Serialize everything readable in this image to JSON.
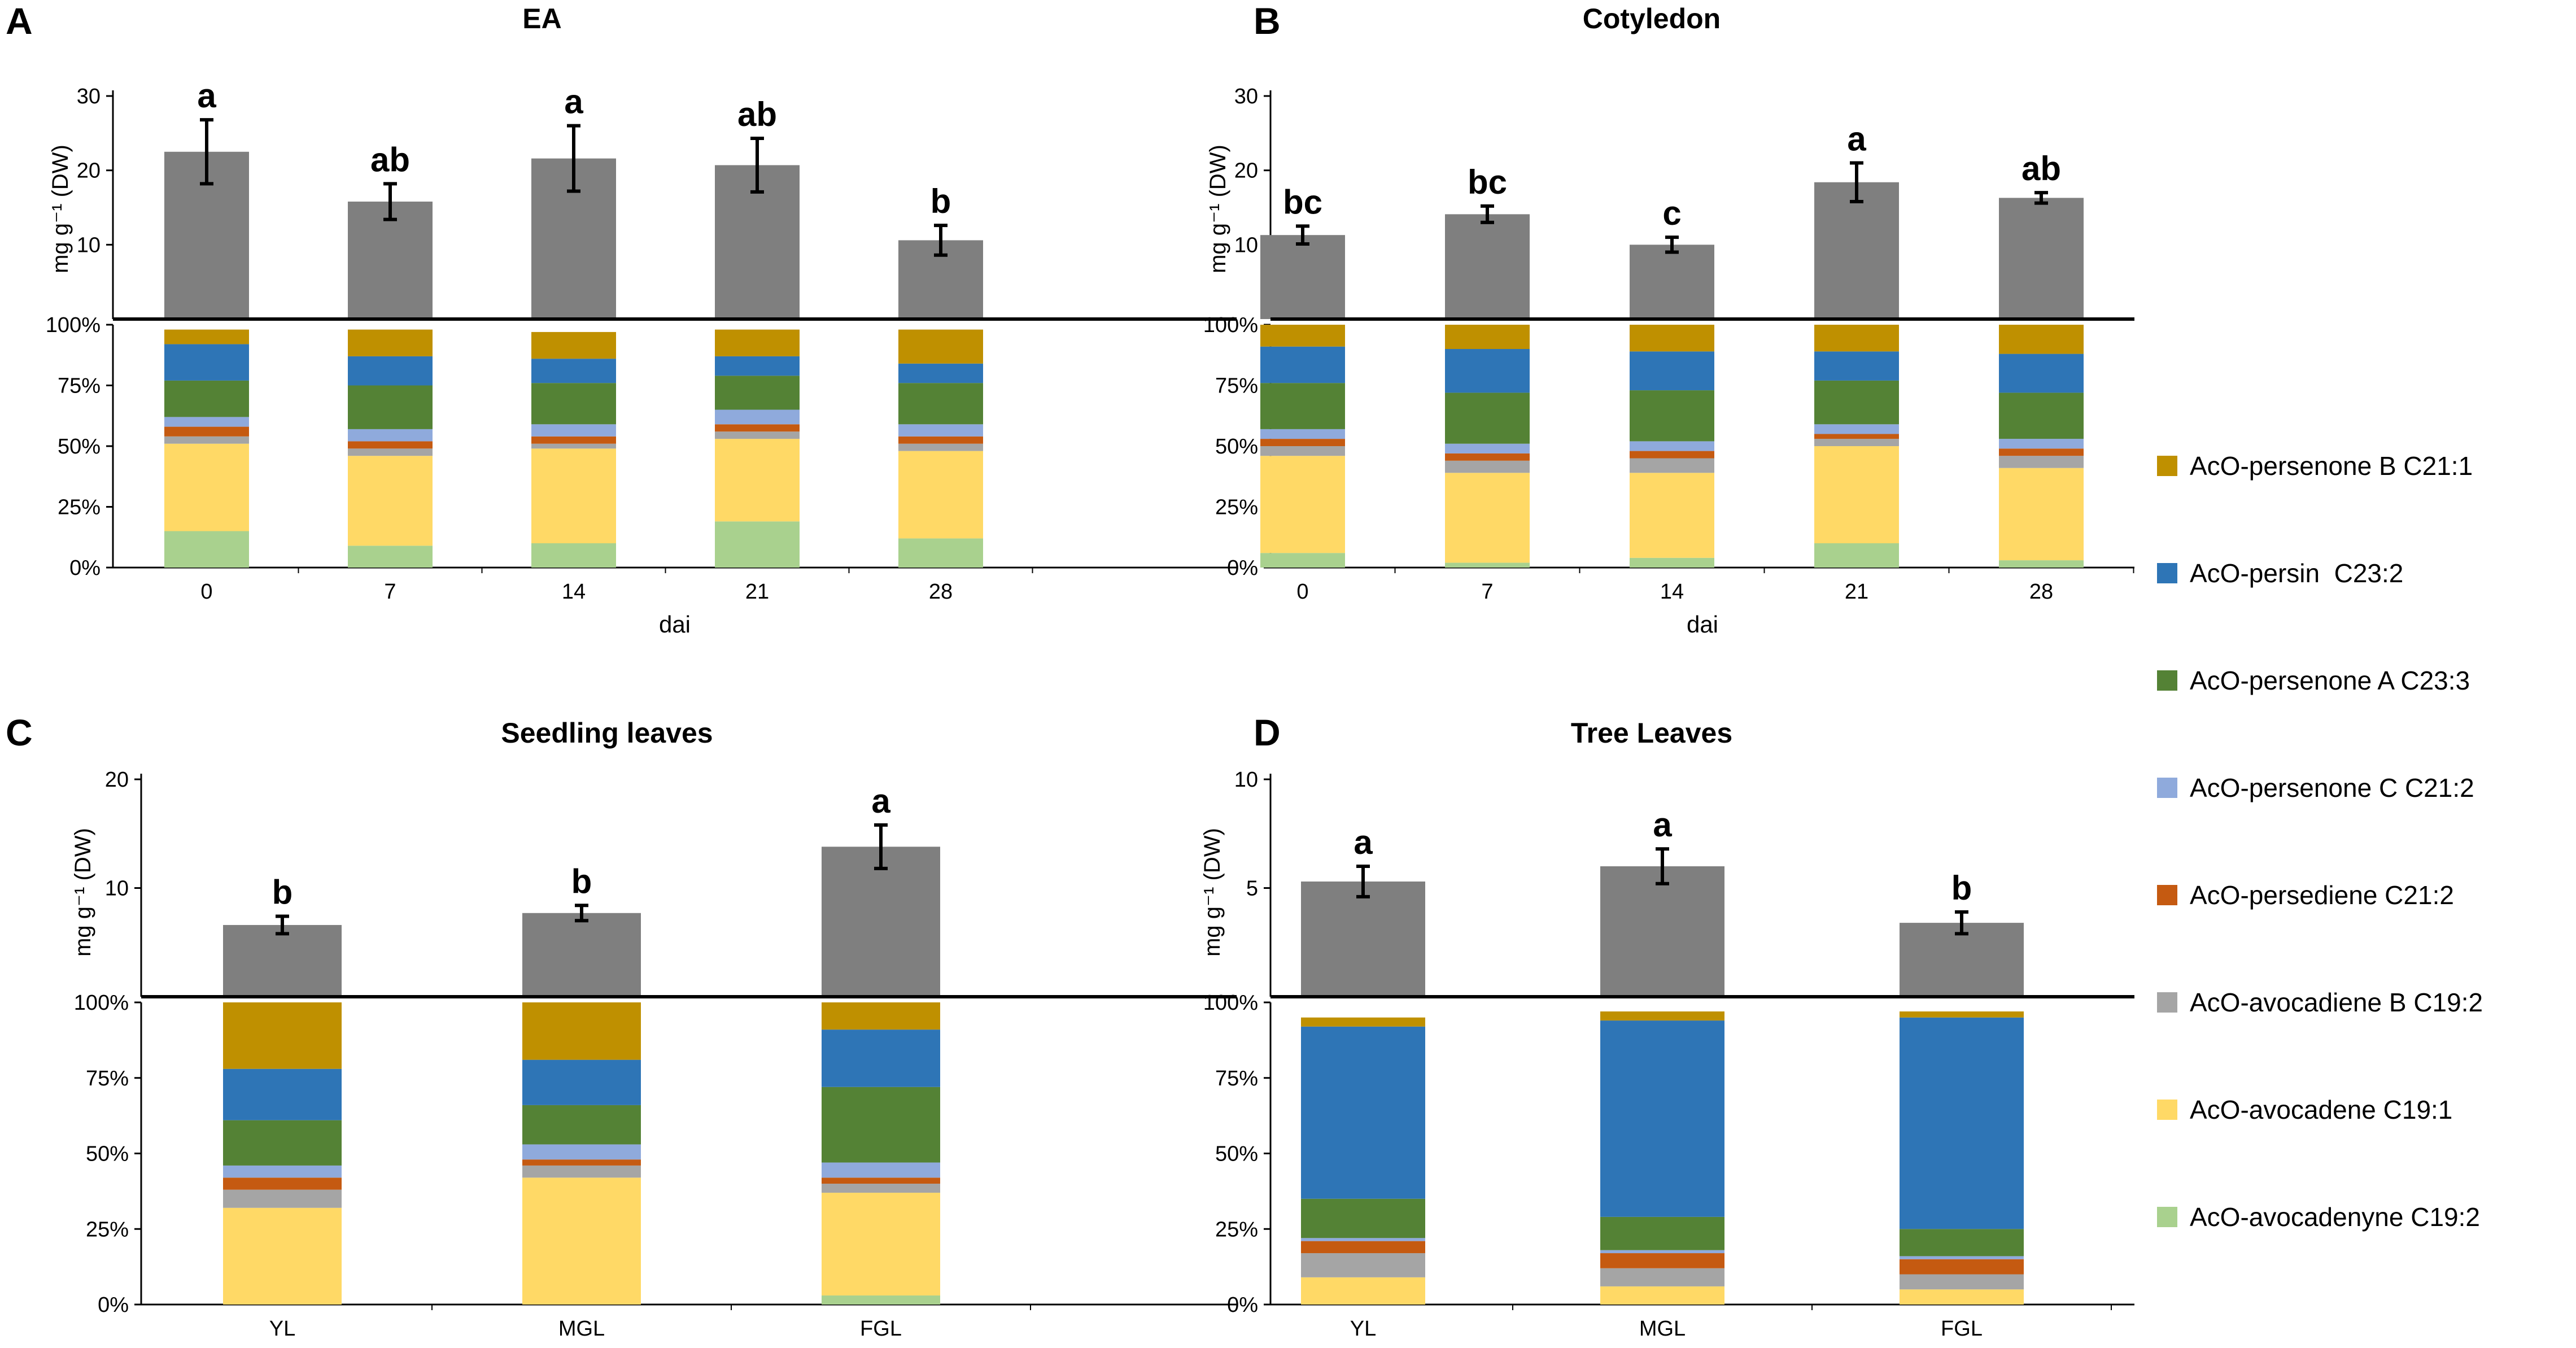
{
  "chart_data": [
    {
      "panel": "A",
      "title": "EA",
      "type": "bar",
      "xlabel": "dai",
      "ylabel": "mg g⁻¹ (DW)",
      "ylim": [
        0,
        30
      ],
      "yticks": [
        "10",
        "20",
        "30"
      ],
      "categories": [
        "0",
        "7",
        "14",
        "21",
        "28"
      ],
      "values": [
        22.5,
        15.8,
        21.6,
        20.7,
        10.6
      ],
      "errors": [
        4.3,
        2.4,
        4.4,
        3.6,
        2.0
      ],
      "significance": [
        "a",
        "ab",
        "a",
        "ab",
        "b"
      ],
      "pct_ticks": [
        "0%",
        "25%",
        "50%",
        "75%",
        "100%"
      ],
      "composition": [
        [
          15,
          36,
          3,
          4,
          4,
          15,
          15,
          6
        ],
        [
          9,
          37,
          3,
          3,
          5,
          18,
          12,
          11
        ],
        [
          10,
          39,
          2,
          3,
          5,
          17,
          10,
          11
        ],
        [
          19,
          34,
          3,
          3,
          6,
          14,
          8,
          11
        ],
        [
          12,
          36,
          3,
          3,
          5,
          17,
          8,
          14
        ]
      ]
    },
    {
      "panel": "B",
      "title": "Cotyledon",
      "type": "bar",
      "xlabel": "dai",
      "ylabel": "mg g⁻¹ (DW)",
      "ylim": [
        0,
        30
      ],
      "yticks": [
        "10",
        "20",
        "30"
      ],
      "categories": [
        "0",
        "7",
        "14",
        "21",
        "28"
      ],
      "values": [
        11.3,
        14.1,
        10.0,
        18.4,
        16.3
      ],
      "errors": [
        1.2,
        1.1,
        1.0,
        2.6,
        0.7
      ],
      "significance": [
        "bc",
        "bc",
        "c",
        "a",
        "ab"
      ],
      "pct_ticks": [
        "0%",
        "25%",
        "50%",
        "75%",
        "100%"
      ],
      "composition": [
        [
          6,
          40,
          4,
          3,
          4,
          19,
          15,
          9
        ],
        [
          2,
          37,
          5,
          3,
          4,
          21,
          18,
          10
        ],
        [
          4,
          35,
          6,
          3,
          4,
          21,
          16,
          11
        ],
        [
          10,
          40,
          3,
          2,
          4,
          18,
          12,
          11
        ],
        [
          3,
          38,
          5,
          3,
          4,
          19,
          16,
          12
        ]
      ]
    },
    {
      "panel": "C",
      "title": "Seedling leaves",
      "type": "bar",
      "xlabel": "",
      "ylabel": "mg g⁻¹ (DW)",
      "ylim": [
        0,
        20
      ],
      "yticks": [
        "10",
        "20"
      ],
      "categories": [
        "YL",
        "MGL",
        "FGL"
      ],
      "values": [
        6.6,
        7.7,
        13.8
      ],
      "errors": [
        0.8,
        0.7,
        2.0
      ],
      "significance": [
        "b",
        "b",
        "a"
      ],
      "pct_ticks": [
        "0%",
        "25%",
        "50%",
        "75%",
        "100%"
      ],
      "composition": [
        [
          0,
          32,
          6,
          4,
          4,
          15,
          17,
          22
        ],
        [
          0,
          42,
          4,
          2,
          5,
          13,
          15,
          19
        ],
        [
          3,
          34,
          3,
          2,
          5,
          25,
          19,
          9
        ]
      ]
    },
    {
      "panel": "D",
      "title": "Tree Leaves",
      "type": "bar",
      "xlabel": "",
      "ylabel": "mg g⁻¹ (DW)",
      "ylim": [
        0,
        10
      ],
      "yticks": [
        "5",
        "10"
      ],
      "categories": [
        "YL",
        "MGL",
        "FGL"
      ],
      "values": [
        5.3,
        6.0,
        3.4
      ],
      "errors": [
        0.7,
        0.8,
        0.5
      ],
      "significance": [
        "a",
        "a",
        "b"
      ],
      "pct_ticks": [
        "0%",
        "25%",
        "50%",
        "75%",
        "100%"
      ],
      "composition": [
        [
          0,
          9,
          8,
          4,
          1,
          13,
          57,
          3
        ],
        [
          0,
          6,
          6,
          5,
          1,
          11,
          65,
          3
        ],
        [
          0,
          5,
          5,
          5,
          1,
          9,
          70,
          2
        ]
      ]
    }
  ],
  "legend": [
    {
      "label": "AcO-persenone B C21:1",
      "color": "#bf9000"
    },
    {
      "label": "AcO-persin  C23:2",
      "color": "#2e75b6"
    },
    {
      "label": "AcO-persenone A C23:3",
      "color": "#548235"
    },
    {
      "label": "AcO-persenone C C21:2",
      "color": "#8faadc"
    },
    {
      "label": "AcO-persediene C21:2",
      "color": "#c55a11"
    },
    {
      "label": "AcO-avocadiene B C19:2",
      "color": "#a5a5a5"
    },
    {
      "label": "AcO-avocadene C19:1",
      "color": "#ffd966"
    },
    {
      "label": "AcO-avocadenyne C19:2",
      "color": "#a9d18e"
    }
  ],
  "stack_colors_bottom_up": [
    "#a9d18e",
    "#ffd966",
    "#a5a5a5",
    "#c55a11",
    "#8faadc",
    "#548235",
    "#2e75b6",
    "#bf9000"
  ],
  "bar_color": "#7f7f7f",
  "axis_color": "#000000"
}
